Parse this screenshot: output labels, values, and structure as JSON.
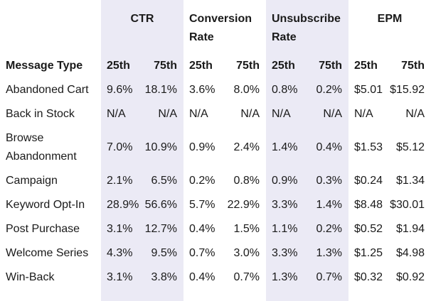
{
  "table": {
    "groups": [
      "CTR",
      "Conversion Rate",
      "Unsubscribe Rate",
      "EPM"
    ],
    "header": [
      "Message Type",
      "25th",
      "75th",
      "25th",
      "75th",
      "25th",
      "75th",
      "25th",
      "75th"
    ],
    "rows": [
      [
        "Abandoned Cart",
        "9.6%",
        "18.1%",
        "3.6%",
        "8.0%",
        "0.8%",
        "0.2%",
        "$5.01",
        "$15.92"
      ],
      [
        "Back in Stock",
        "N/A",
        "N/A",
        "N/A",
        "N/A",
        "N/A",
        "N/A",
        "N/A",
        "N/A"
      ],
      [
        "Browse Abandonment",
        "7.0%",
        "10.9%",
        "0.9%",
        "2.4%",
        "1.4%",
        "0.4%",
        "$1.53",
        "$5.12"
      ],
      [
        "Campaign",
        "2.1%",
        "6.5%",
        "0.2%",
        "0.8%",
        "0.9%",
        "0.3%",
        "$0.24",
        "$1.34"
      ],
      [
        "Keyword Opt-In",
        "28.9%",
        "56.6%",
        "5.7%",
        "22.9%",
        "3.3%",
        "1.4%",
        "$8.48",
        "$30.01"
      ],
      [
        "Post Purchase",
        "3.1%",
        "12.7%",
        "0.4%",
        "1.5%",
        "1.1%",
        "0.2%",
        "$0.52",
        "$1.94"
      ],
      [
        "Welcome Series",
        "4.3%",
        "9.5%",
        "0.7%",
        "3.0%",
        "3.3%",
        "1.3%",
        "$1.25",
        "$4.98"
      ],
      [
        "Win-Back",
        "3.1%",
        "3.8%",
        "0.4%",
        "0.7%",
        "1.3%",
        "0.7%",
        "$0.32",
        "$0.92"
      ]
    ]
  }
}
